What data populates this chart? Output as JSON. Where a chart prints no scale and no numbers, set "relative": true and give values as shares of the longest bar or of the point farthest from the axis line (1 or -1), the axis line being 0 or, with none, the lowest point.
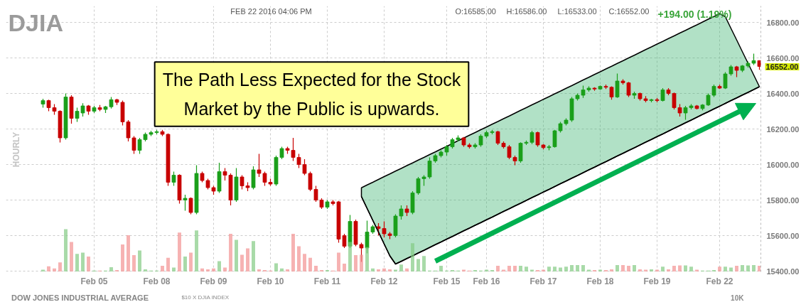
{
  "chart_data": [
    {
      "type": "candlestick",
      "title": "DJIA",
      "subtitle": "DOW JONES INDUSTRIAL AVERAGE",
      "ylabel": "HOURLY",
      "annotations": [
        "FEB 22 2016 04:06 PM",
        "O:16585.00",
        "H:16586.00",
        "L:16533.00",
        "C:16552.00",
        "+194.00 (1.19%)",
        "$10 X DJIA INDEX",
        "10K",
        "16552.00",
        "The Path Less Expected for the Stock Market by the Public is upwards."
      ],
      "categories": [
        null,
        null,
        null,
        null,
        null,
        null,
        null,
        null,
        null,
        "Feb 05",
        null,
        null,
        null,
        null,
        null,
        null,
        null,
        null,
        null,
        null,
        "Feb 08",
        null,
        null,
        null,
        null,
        null,
        null,
        null,
        null,
        null,
        "Feb 09",
        null,
        null,
        null,
        null,
        null,
        null,
        null,
        null,
        null,
        "Feb 10",
        null,
        null,
        null,
        null,
        null,
        null,
        null,
        null,
        null,
        "Feb 11",
        null,
        null,
        null,
        null,
        null,
        null,
        null,
        null,
        null,
        "Feb 12",
        null,
        null,
        null,
        null,
        null,
        null,
        null,
        null,
        null,
        null,
        "Feb 15",
        null,
        null,
        null,
        null,
        null,
        null,
        "Feb 16",
        null,
        null,
        null,
        null,
        null,
        null,
        null,
        null,
        null,
        "Feb 17",
        null,
        null,
        null,
        null,
        null,
        null,
        null,
        null,
        null,
        "Feb 18",
        null,
        null,
        null,
        null,
        null,
        null,
        null,
        null,
        null,
        "Feb 19",
        null,
        null,
        null,
        null,
        null,
        null,
        null,
        null,
        null,
        null,
        "Feb 22",
        null,
        null,
        null,
        null,
        null,
        null,
        null
      ],
      "ohlc": [
        [
          16340,
          16370,
          16320,
          16360
        ],
        [
          16360,
          16365,
          16300,
          16320
        ],
        [
          16320,
          16340,
          16280,
          16300
        ],
        [
          16300,
          16305,
          16124,
          16150
        ],
        [
          16150,
          16400,
          16140,
          16380
        ],
        [
          16380,
          16390,
          16230,
          16260
        ],
        [
          16260,
          16320,
          16240,
          16300
        ],
        [
          16290,
          16345,
          16270,
          16330
        ],
        [
          16330,
          16335,
          16280,
          16300
        ],
        [
          16300,
          16330,
          16290,
          16320
        ],
        [
          16320,
          16335,
          16300,
          16310
        ],
        [
          16310,
          16330,
          16290,
          16325
        ],
        [
          16325,
          16380,
          16315,
          16365
        ],
        [
          16365,
          16370,
          16335,
          16350
        ],
        [
          16350,
          16360,
          16220,
          16240
        ],
        [
          16240,
          16250,
          16130,
          16150
        ],
        [
          16150,
          16160,
          16060,
          16080
        ],
        [
          16080,
          16150,
          16060,
          16140
        ],
        [
          16140,
          16180,
          16130,
          16170
        ],
        [
          16170,
          16190,
          16160,
          16180
        ],
        [
          16180,
          16195,
          16170,
          16185
        ],
        [
          16185,
          16195,
          16160,
          16170
        ],
        [
          16170,
          16175,
          15880,
          15900
        ],
        [
          15900,
          15960,
          15880,
          15940
        ],
        [
          15940,
          15945,
          15780,
          15800
        ],
        [
          15800,
          15830,
          15740,
          15810
        ],
        [
          15810,
          15815,
          15720,
          15730
        ],
        [
          15730,
          15996,
          15720,
          15950
        ],
        [
          15950,
          15960,
          15900,
          15910
        ],
        [
          15910,
          15920,
          15860,
          15870
        ],
        [
          15870,
          15880,
          15830,
          15850
        ],
        [
          15850,
          16010,
          15840,
          15960
        ],
        [
          15960,
          15980,
          15910,
          15940
        ],
        [
          15940,
          15950,
          15770,
          15800
        ],
        [
          15800,
          15980,
          15790,
          15930
        ],
        [
          15930,
          15940,
          15860,
          15880
        ],
        [
          15880,
          15900,
          15850,
          15870
        ],
        [
          15870,
          15990,
          15860,
          15970
        ],
        [
          15970,
          16060,
          15930,
          15950
        ],
        [
          15950,
          15960,
          15880,
          15900
        ],
        [
          15900,
          15920,
          15880,
          15890
        ],
        [
          15890,
          16050,
          15880,
          16040
        ],
        [
          16040,
          16100,
          16030,
          16090
        ],
        [
          16090,
          16100,
          16060,
          16080
        ],
        [
          16080,
          16150,
          16020,
          16040
        ],
        [
          16040,
          16060,
          15980,
          16000
        ],
        [
          16000,
          16030,
          15940,
          15950
        ],
        [
          15950,
          15960,
          15850,
          15860
        ],
        [
          15860,
          15880,
          15790,
          15800
        ],
        [
          15800,
          15810,
          15750,
          15760
        ],
        [
          15760,
          15800,
          15750,
          15790
        ],
        [
          15790,
          15800,
          15770,
          15780
        ],
        [
          15790,
          15795,
          15560,
          15580
        ],
        [
          15600,
          15610,
          15530,
          15540
        ],
        [
          15540,
          15716,
          15530,
          15680
        ],
        [
          15680,
          15690,
          15540,
          15550
        ],
        [
          15550,
          15560,
          15452,
          15530
        ],
        [
          15530,
          15684,
          15500,
          15620
        ],
        [
          15620,
          15660,
          15610,
          15650
        ],
        [
          15650,
          15670,
          15600,
          15640
        ],
        [
          15640,
          15680,
          15590,
          15610
        ],
        [
          15610,
          15620,
          15580,
          15600
        ],
        [
          15600,
          15720,
          15590,
          15710
        ],
        [
          15710,
          15770,
          15690,
          15750
        ],
        [
          15750,
          15770,
          15710,
          15730
        ],
        [
          15730,
          15850,
          15720,
          15840
        ],
        [
          15840,
          15930,
          15830,
          15920
        ],
        [
          15920,
          15940,
          15880,
          15930
        ],
        [
          15930,
          16040,
          15920,
          16020
        ],
        [
          16020,
          16060,
          16010,
          16050
        ],
        [
          16050,
          16080,
          16040,
          16070
        ],
        [
          16070,
          16110,
          16050,
          16100
        ],
        [
          16100,
          16150,
          16090,
          16140
        ],
        [
          16140,
          16164,
          16130,
          16150
        ],
        [
          16150,
          16155,
          16100,
          16110
        ],
        [
          16110,
          16120,
          16090,
          16100
        ],
        [
          16100,
          16120,
          16090,
          16110
        ],
        [
          16110,
          16170,
          16100,
          16160
        ],
        [
          16160,
          16190,
          16150,
          16180
        ],
        [
          16180,
          16195,
          16170,
          16185
        ],
        [
          16185,
          16190,
          16110,
          16120
        ],
        [
          16120,
          16130,
          16090,
          16100
        ],
        [
          16100,
          16110,
          16030,
          16040
        ],
        [
          16040,
          16050,
          15996,
          16020
        ],
        [
          16020,
          16125,
          16010,
          16120
        ],
        [
          16120,
          16135,
          16110,
          16125
        ],
        [
          16125,
          16190,
          16115,
          16180
        ],
        [
          16180,
          16185,
          16100,
          16110
        ],
        [
          16110,
          16115,
          16085,
          16095
        ],
        [
          16095,
          16110,
          16080,
          16100
        ],
        [
          16100,
          16195,
          16095,
          16190
        ],
        [
          16190,
          16240,
          16180,
          16230
        ],
        [
          16230,
          16260,
          16220,
          16250
        ],
        [
          16250,
          16380,
          16240,
          16370
        ],
        [
          16370,
          16400,
          16360,
          16390
        ],
        [
          16390,
          16444,
          16375,
          16420
        ],
        [
          16420,
          16440,
          16410,
          16430
        ],
        [
          16430,
          16435,
          16415,
          16425
        ],
        [
          16425,
          16445,
          16420,
          16440
        ],
        [
          16440,
          16450,
          16425,
          16435
        ],
        [
          16435,
          16440,
          16365,
          16380
        ],
        [
          16380,
          16512,
          16375,
          16470
        ],
        [
          16470,
          16480,
          16450,
          16460
        ],
        [
          16460,
          16465,
          16380,
          16390
        ],
        [
          16390,
          16410,
          16370,
          16400
        ],
        [
          16400,
          16405,
          16360,
          16370
        ],
        [
          16370,
          16385,
          16350,
          16360
        ],
        [
          16360,
          16370,
          16350,
          16365
        ],
        [
          16365,
          16375,
          16350,
          16360
        ],
        [
          16360,
          16430,
          16355,
          16420
        ],
        [
          16420,
          16430,
          16390,
          16400
        ],
        [
          16400,
          16405,
          16310,
          16320
        ],
        [
          16320,
          16340,
          16270,
          16290
        ],
        [
          16290,
          16330,
          16252,
          16320
        ],
        [
          16320,
          16340,
          16310,
          16330
        ],
        [
          16330,
          16335,
          16310,
          16315
        ],
        [
          16315,
          16340,
          16305,
          16335
        ],
        [
          16335,
          16400,
          16330,
          16390
        ],
        [
          16390,
          16450,
          16380,
          16440
        ],
        [
          16440,
          16450,
          16425,
          16430
        ],
        [
          16430,
          16520,
          16425,
          16510
        ],
        [
          16510,
          16560,
          16500,
          16550
        ],
        [
          16550,
          16555,
          16492,
          16530
        ],
        [
          16530,
          16560,
          16520,
          16555
        ],
        [
          16555,
          16580,
          16545,
          16570
        ],
        [
          16570,
          16624,
          16560,
          16585
        ],
        [
          16585,
          16586,
          16533,
          16552
        ]
      ],
      "colors": [
        "#1a9f1a",
        "#c80000",
        "#c80000",
        "#c80000",
        "#1a9f1a",
        "#c80000",
        "#1a9f1a",
        "#1a9f1a",
        "#c80000",
        "#1a9f1a",
        "#c80000",
        "#1a9f1a",
        "#1a9f1a",
        "#c80000",
        "#c80000",
        "#c80000",
        "#c80000",
        "#1a9f1a",
        "#1a9f1a",
        "#1a9f1a",
        "#1a9f1a",
        "#c80000",
        "#c80000",
        "#1a9f1a",
        "#c80000",
        "#1a9f1a",
        "#c80000",
        "#1a9f1a",
        "#c80000",
        "#c80000",
        "#c80000",
        "#1a9f1a",
        "#c80000",
        "#c80000",
        "#1a9f1a",
        "#c80000",
        "#c80000",
        "#1a9f1a",
        "#c80000",
        "#c80000",
        "#c80000",
        "#1a9f1a",
        "#1a9f1a",
        "#c80000",
        "#c80000",
        "#c80000",
        "#c80000",
        "#c80000",
        "#c80000",
        "#c80000",
        "#1a9f1a",
        "#c80000",
        "#c80000",
        "#c80000",
        "#1a9f1a",
        "#c80000",
        "#c80000",
        "#1a9f1a",
        "#1a9f1a",
        "#c80000",
        "#c80000",
        "#c80000",
        "#1a9f1a",
        "#1a9f1a",
        "#c80000",
        "#1a9f1a",
        "#1a9f1a",
        "#1a9f1a",
        "#1a9f1a",
        "#1a9f1a",
        "#1a9f1a",
        "#1a9f1a",
        "#1a9f1a",
        "#1a9f1a",
        "#c80000",
        "#c80000",
        "#1a9f1a",
        "#1a9f1a",
        "#1a9f1a",
        "#1a9f1a",
        "#c80000",
        "#c80000",
        "#c80000",
        "#c80000",
        "#1a9f1a",
        "#1a9f1a",
        "#1a9f1a",
        "#c80000",
        "#c80000",
        "#1a9f1a",
        "#1a9f1a",
        "#1a9f1a",
        "#1a9f1a",
        "#1a9f1a",
        "#1a9f1a",
        "#1a9f1a",
        "#1a9f1a",
        "#c80000",
        "#1a9f1a",
        "#c80000",
        "#c80000",
        "#1a9f1a",
        "#c80000",
        "#c80000",
        "#1a9f1a",
        "#c80000",
        "#c80000",
        "#1a9f1a",
        "#c80000",
        "#1a9f1a",
        "#c80000",
        "#c80000",
        "#c80000",
        "#1a9f1a",
        "#1a9f1a",
        "#c80000",
        "#1a9f1a",
        "#1a9f1a",
        "#1a9f1a",
        "#c80000",
        "#1a9f1a",
        "#1a9f1a",
        "#c80000",
        "#1a9f1a",
        "#1a9f1a",
        "#1a9f1a",
        "#c80000"
      ],
      "series": [
        {
          "type": "area",
          "color": "#3cb371",
          "values": [
            null,
            null,
            null,
            null,
            null,
            null,
            null,
            null,
            null,
            null,
            null,
            null,
            null,
            null,
            null,
            null,
            null,
            null,
            null,
            null,
            null,
            null,
            null,
            null,
            null,
            null,
            null,
            null,
            null,
            null,
            null,
            null,
            null,
            null,
            null,
            null,
            null,
            null,
            null,
            null,
            null,
            null,
            null,
            null,
            null,
            null,
            null,
            null,
            null,
            null,
            null,
            null,
            null,
            null,
            null,
            null,
            15869,
            15885,
            15900,
            15916,
            15932,
            15947,
            15963,
            15978,
            15994,
            16009,
            16025,
            16040,
            16056,
            16071,
            16087,
            16102,
            16118,
            16134,
            16149,
            16165,
            16180,
            16196,
            16211,
            16227,
            16242,
            16258,
            16273,
            16289,
            16305,
            16320,
            16336,
            16351,
            16367,
            16382,
            16398,
            16413,
            16429,
            16444,
            16460,
            16476,
            16491,
            16507,
            16522,
            16538,
            16553,
            16569,
            16584,
            16600,
            16615,
            16631,
            16647,
            16662,
            16678,
            16693,
            16709,
            16724,
            16740,
            16755,
            16771,
            16786,
            16802,
            16818,
            16833,
            16849,
            16832,
            16766,
            16701,
            16635,
            16570,
            16504,
            16438
          ]
        },
        {
          "type": "line",
          "color": "#000000",
          "values": [
            null,
            null,
            null,
            null,
            null,
            null,
            null,
            null,
            null,
            null,
            null,
            null,
            null,
            null,
            null,
            null,
            null,
            null,
            null,
            null,
            null,
            null,
            null,
            null,
            null,
            null,
            null,
            null,
            null,
            null,
            null,
            null,
            null,
            null,
            null,
            null,
            null,
            null,
            null,
            null,
            null,
            null,
            null,
            null,
            null,
            null,
            null,
            null,
            null,
            null,
            null,
            null,
            null,
            null,
            null,
            null,
            15820,
            15753,
            15686,
            15620,
            15553,
            15486,
            15440,
            15455,
            15471,
            15486,
            15502,
            15517,
            15533,
            15549,
            15564,
            15580,
            15595,
            15611,
            15627,
            15642,
            15658,
            15673,
            15689,
            15704,
            15720,
            15736,
            15751,
            15767,
            15782,
            15798,
            15814,
            15829,
            15845,
            15860,
            15876,
            15892,
            15907,
            15923,
            15938,
            15954,
            15970,
            15985,
            16001,
            16016,
            16032,
            16048,
            16063,
            16079,
            16094,
            16110,
            16126,
            16141,
            16157,
            16172,
            16188,
            16204,
            16219,
            16235,
            16250,
            16266,
            16282,
            16297,
            16313,
            16328,
            16344,
            16360,
            16375,
            16391,
            16406,
            16422,
            16438
          ]
        }
      ],
      "ylim": [
        15396,
        16892
      ],
      "yticks": [
        {
          "value": 15400,
          "label": "15400.00"
        },
        {
          "value": 15600,
          "label": "15600.00"
        },
        {
          "value": 15800,
          "label": "15800.00"
        },
        {
          "value": 16000,
          "label": "16000.00"
        },
        {
          "value": 16200,
          "label": "16200.00"
        },
        {
          "value": 16400,
          "label": "16400.00"
        },
        {
          "value": 16600,
          "label": "16600.00"
        },
        {
          "value": 16800,
          "label": "16800.00"
        }
      ],
      "grid": true
    },
    {
      "type": "bar",
      "relative": true,
      "categories": [
        null,
        null,
        null,
        null,
        null,
        null,
        null,
        null,
        null,
        null,
        null,
        null,
        null,
        null,
        null,
        null,
        null,
        null,
        null,
        null,
        null,
        null,
        null,
        null,
        null,
        null,
        null,
        null,
        null,
        null,
        null,
        null,
        null,
        null,
        null,
        null,
        null,
        null,
        null,
        null,
        null,
        null,
        null,
        null,
        null,
        null,
        null,
        null,
        null,
        null,
        null,
        null,
        null,
        null,
        null,
        null,
        null,
        null,
        null,
        null,
        null,
        null,
        null,
        null,
        null,
        null,
        null,
        null,
        null,
        null,
        null,
        null,
        null,
        null,
        null,
        null,
        null,
        null,
        null,
        null,
        null,
        null,
        null,
        null,
        null,
        null,
        null,
        null,
        null,
        null,
        null,
        null,
        null,
        null,
        null,
        null,
        null,
        null,
        null,
        null,
        null,
        null,
        null,
        null,
        null,
        null,
        null,
        null,
        null,
        null,
        null,
        null,
        null,
        null,
        null,
        null,
        null,
        null,
        null,
        null,
        null,
        null,
        null,
        null,
        null,
        null,
        null
      ],
      "values": [
        0.05,
        0.13,
        0.08,
        0.22,
        1,
        0.7,
        0.42,
        0.45,
        0.36,
        0.03,
        0.03,
        0.03,
        0.11,
        0.04,
        0.64,
        0.86,
        0.39,
        0.5,
        0.06,
        0.03,
        0.03,
        0.14,
        0.33,
        0.1,
        0.92,
        0.36,
        0.45,
        0.97,
        0.08,
        0.06,
        0.08,
        0.25,
        0.1,
        0.89,
        0.75,
        0.4,
        0.55,
        0.72,
        0.06,
        0.04,
        0.03,
        0.2,
        0.08,
        0.06,
        0.89,
        0.6,
        0.42,
        0.33,
        0.14,
        0.04,
        0.04,
        0.03,
        0.45,
        0.19,
        0.7,
        0.39,
        0.4,
        0.58,
        0.08,
        0.06,
        0.08,
        0.06,
        0.05,
        0.17,
        0.08,
        0.67,
        0.3,
        0.37,
        0.03,
        0.03,
        0.14,
        0.03,
        0.04,
        0.03,
        0.05,
        0.03,
        0.04,
        0.03,
        0.05,
        0.04,
        0.14,
        0.05,
        0.14,
        0.14,
        0.14,
        0.12,
        0.05,
        0.04,
        0.05,
        0.12,
        0.12,
        0.1,
        0.12,
        0.16,
        0.16,
        0.16,
        0.05,
        0.04,
        0.05,
        0.04,
        0.06,
        0.16,
        0.16,
        0.14,
        0.16,
        0.06,
        0.05,
        0.06,
        0.05,
        0.12,
        0.06,
        0.14,
        0.15,
        0.15,
        0.12,
        0.05,
        0.03,
        0.03,
        0.04,
        0.12,
        0.12,
        0.1,
        0.14,
        0.16,
        0.15,
        0.16,
        0.14
      ],
      "colors": [
        "#a8daa8",
        "#f6b3b3",
        "#f6b3b3",
        "#f6b3b3",
        "#a8daa8",
        "#f6b3b3",
        "#a8daa8",
        "#a8daa8",
        "#f6b3b3",
        "#a8daa8",
        "#f6b3b3",
        "#a8daa8",
        "#a8daa8",
        "#f6b3b3",
        "#f6b3b3",
        "#f6b3b3",
        "#f6b3b3",
        "#a8daa8",
        "#a8daa8",
        "#a8daa8",
        "#a8daa8",
        "#f6b3b3",
        "#f6b3b3",
        "#a8daa8",
        "#f6b3b3",
        "#a8daa8",
        "#f6b3b3",
        "#a8daa8",
        "#f6b3b3",
        "#f6b3b3",
        "#f6b3b3",
        "#a8daa8",
        "#f6b3b3",
        "#f6b3b3",
        "#a8daa8",
        "#f6b3b3",
        "#f6b3b3",
        "#a8daa8",
        "#f6b3b3",
        "#f6b3b3",
        "#f6b3b3",
        "#a8daa8",
        "#a8daa8",
        "#f6b3b3",
        "#f6b3b3",
        "#f6b3b3",
        "#f6b3b3",
        "#f6b3b3",
        "#f6b3b3",
        "#f6b3b3",
        "#a8daa8",
        "#f6b3b3",
        "#f6b3b3",
        "#f6b3b3",
        "#a8daa8",
        "#f6b3b3",
        "#f6b3b3",
        "#a8daa8",
        "#a8daa8",
        "#f6b3b3",
        "#f6b3b3",
        "#f6b3b3",
        "#a8daa8",
        "#a8daa8",
        "#f6b3b3",
        "#a8daa8",
        "#a8daa8",
        "#a8daa8",
        "#a8daa8",
        "#a8daa8",
        "#a8daa8",
        "#a8daa8",
        "#a8daa8",
        "#a8daa8",
        "#f6b3b3",
        "#f6b3b3",
        "#a8daa8",
        "#a8daa8",
        "#a8daa8",
        "#a8daa8",
        "#f6b3b3",
        "#f6b3b3",
        "#f6b3b3",
        "#f6b3b3",
        "#a8daa8",
        "#a8daa8",
        "#a8daa8",
        "#f6b3b3",
        "#f6b3b3",
        "#a8daa8",
        "#a8daa8",
        "#a8daa8",
        "#a8daa8",
        "#a8daa8",
        "#a8daa8",
        "#a8daa8",
        "#a8daa8",
        "#f6b3b3",
        "#a8daa8",
        "#f6b3b3",
        "#f6b3b3",
        "#a8daa8",
        "#f6b3b3",
        "#f6b3b3",
        "#a8daa8",
        "#f6b3b3",
        "#f6b3b3",
        "#a8daa8",
        "#f6b3b3",
        "#a8daa8",
        "#f6b3b3",
        "#f6b3b3",
        "#f6b3b3",
        "#a8daa8",
        "#a8daa8",
        "#f6b3b3",
        "#a8daa8",
        "#a8daa8",
        "#a8daa8",
        "#f6b3b3",
        "#a8daa8",
        "#a8daa8",
        "#f6b3b3",
        "#a8daa8",
        "#a8daa8",
        "#a8daa8",
        "#f6b3b3"
      ]
    }
  ]
}
